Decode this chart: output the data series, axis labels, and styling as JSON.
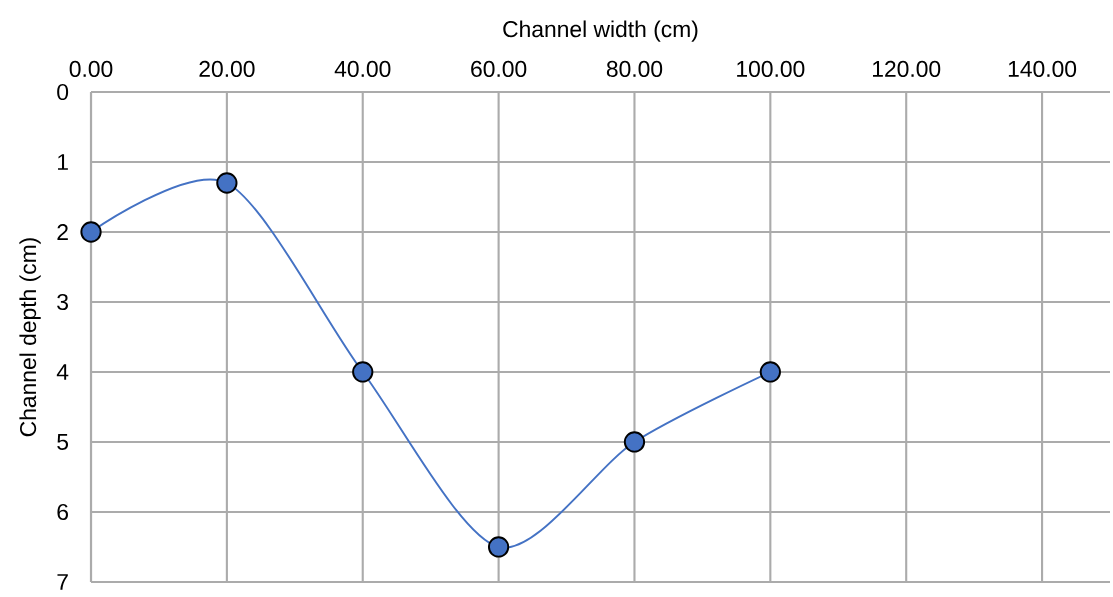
{
  "chart_data": {
    "type": "line",
    "xlabel": "Channel width (cm)",
    "ylabel": "Channel depth (cm)",
    "x": [
      0,
      20,
      40,
      60,
      80,
      100
    ],
    "values": [
      2,
      1.3,
      4,
      6.5,
      5,
      4
    ],
    "color": "#4472c4",
    "xlim": [
      0,
      150
    ],
    "ylim": [
      7,
      0
    ],
    "xticks": [
      {
        "value": 0,
        "label": "0.00"
      },
      {
        "value": 20,
        "label": "20.00"
      },
      {
        "value": 40,
        "label": "40.00"
      },
      {
        "value": 60,
        "label": "60.00"
      },
      {
        "value": 80,
        "label": "80.00"
      },
      {
        "value": 100,
        "label": "100.00"
      },
      {
        "value": 120,
        "label": "120.00"
      },
      {
        "value": 140,
        "label": "140.00"
      }
    ],
    "yticks": [
      0,
      1,
      2,
      3,
      4,
      5,
      6,
      7
    ],
    "grid": true,
    "marker": "circle"
  }
}
